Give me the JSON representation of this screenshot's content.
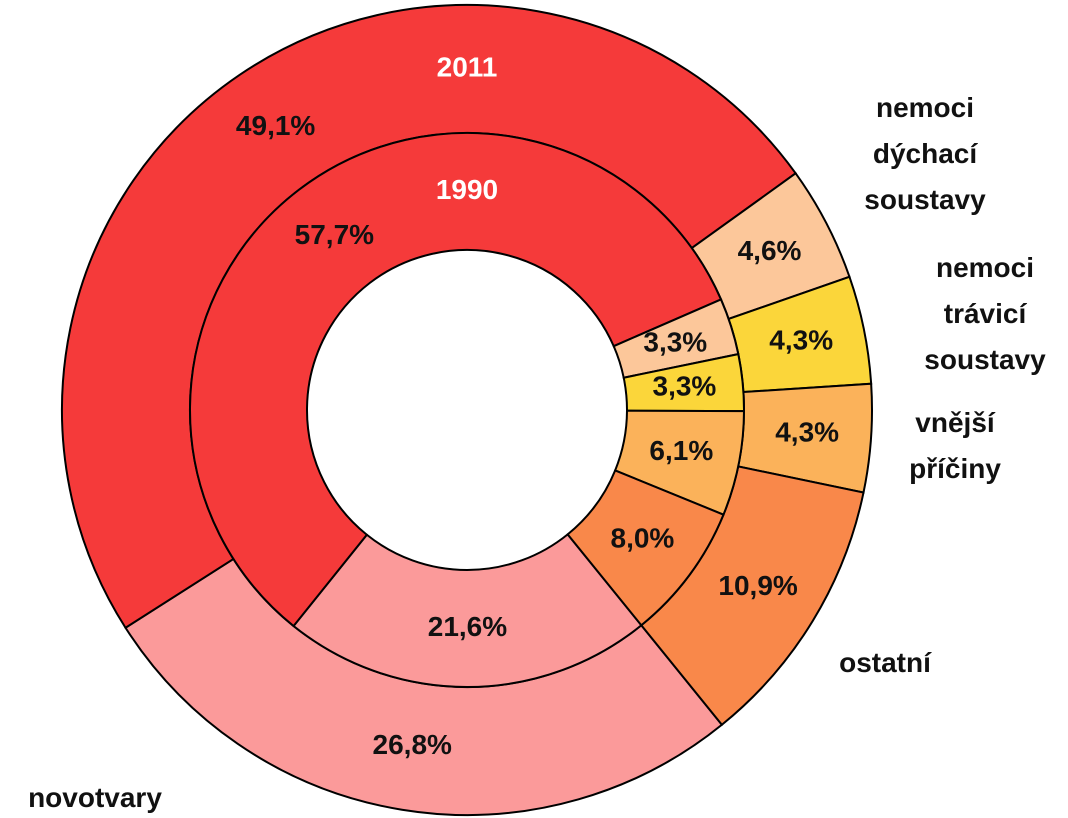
{
  "chart_data": {
    "type": "donut",
    "categories": [
      "novotvary",
      null,
      "nemoci dýchací soustavy",
      "nemoci trávicí soustavy",
      "vnější příčiny",
      "ostatní"
    ],
    "colors": [
      "#fb9a9a",
      "#f53a3a",
      "#fcc79a",
      "#fbd63a",
      "#fbb25a",
      "#f9884a"
    ],
    "series": [
      {
        "name": "2011",
        "values": [
          26.8,
          49.1,
          4.6,
          4.3,
          4.3,
          10.9
        ],
        "value_labels": [
          "26,8%",
          "49,1%",
          "4,6%",
          "4,3%",
          "4,3%",
          "10,9%"
        ]
      },
      {
        "name": "1990",
        "values": [
          21.6,
          57.7,
          3.3,
          3.3,
          6.1,
          8.0
        ],
        "value_labels": [
          "21,6%",
          "57,7%",
          "3,3%",
          "3,3%",
          "6,1%",
          "8,0%"
        ]
      }
    ]
  }
}
